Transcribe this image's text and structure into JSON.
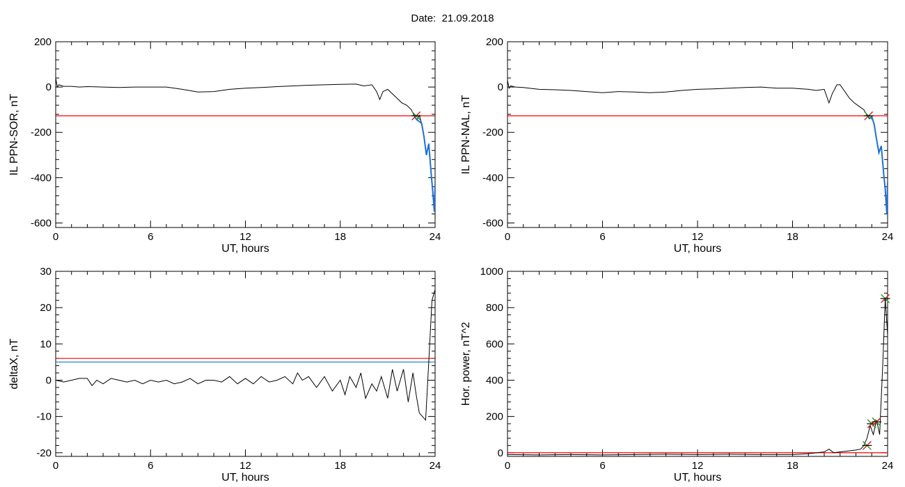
{
  "header": {
    "date_label": "Date:",
    "date_value": "21.09.2018"
  },
  "chart_data": [
    {
      "type": "line",
      "xlabel": "UT, hours",
      "ylabel": "IL PPN-SOR, nT",
      "xlim": [
        0,
        24
      ],
      "ylim": [
        -620,
        200
      ],
      "xticks": [
        0,
        6,
        12,
        18,
        24
      ],
      "yticks": [
        -600,
        -400,
        -200,
        0,
        200
      ],
      "threshold": -127,
      "threshold_color": "#ff0000",
      "series_color": "#000000",
      "highlight_color": "#1f6fd6",
      "series": [
        {
          "x": [
            0,
            0.1,
            0.2,
            0.5,
            1,
            1.5,
            2,
            3,
            4,
            5,
            6,
            7,
            8,
            9,
            10,
            11,
            12,
            13,
            14,
            15,
            16,
            17,
            18,
            19,
            19.5,
            20,
            20.3,
            20.5,
            20.7,
            21,
            21.3,
            21.6,
            21.9,
            22.2,
            22.5,
            22.7,
            22.85,
            23,
            23.15,
            23.3,
            23.45,
            23.6,
            23.75,
            23.85,
            23.95,
            24
          ],
          "y": [
            40,
            0,
            10,
            3,
            3,
            0,
            2,
            0,
            -2,
            0,
            0,
            0,
            -10,
            -22,
            -20,
            -10,
            -5,
            -2,
            2,
            5,
            8,
            10,
            12,
            13,
            5,
            10,
            -20,
            -55,
            -20,
            -10,
            -30,
            -50,
            -70,
            -80,
            -100,
            -130,
            -145,
            -125,
            -160,
            -220,
            -300,
            -250,
            -380,
            -460,
            -550,
            -430
          ]
        }
      ],
      "markers": [
        {
          "x": 22.8,
          "y": -127
        }
      ]
    },
    {
      "type": "line",
      "xlabel": "UT, hours",
      "ylabel": "IL PPN-NAL, nT",
      "xlim": [
        0,
        24
      ],
      "ylim": [
        -620,
        200
      ],
      "xticks": [
        0,
        6,
        12,
        18,
        24
      ],
      "yticks": [
        -600,
        -400,
        -200,
        0,
        200
      ],
      "threshold": -127,
      "threshold_color": "#ff0000",
      "series_color": "#000000",
      "highlight_color": "#1f6fd6",
      "series": [
        {
          "x": [
            0,
            0.1,
            0.2,
            0.5,
            1,
            2,
            3,
            4,
            5,
            6,
            7,
            8,
            9,
            10,
            11,
            12,
            13,
            14,
            15,
            16,
            17,
            18,
            19,
            19.5,
            20,
            20.3,
            20.5,
            20.8,
            21,
            21.3,
            21.6,
            21.9,
            22.2,
            22.5,
            22.7,
            22.85,
            23,
            23.15,
            23.3,
            23.45,
            23.6,
            23.75,
            23.85,
            23.95,
            24
          ],
          "y": [
            30,
            -5,
            5,
            0,
            -2,
            -10,
            -12,
            -15,
            -20,
            -25,
            -20,
            -22,
            -25,
            -22,
            -15,
            -10,
            -8,
            -5,
            -2,
            0,
            -5,
            -5,
            -10,
            -15,
            -10,
            -70,
            -30,
            10,
            10,
            -20,
            -50,
            -70,
            -85,
            -100,
            -125,
            -140,
            -130,
            -165,
            -230,
            -290,
            -260,
            -380,
            -450,
            -560,
            -420
          ]
        }
      ],
      "markers": [
        {
          "x": 22.8,
          "y": -127
        }
      ]
    },
    {
      "type": "line",
      "xlabel": "UT, hours",
      "ylabel": "deltaX, nT",
      "xlim": [
        0,
        24
      ],
      "ylim": [
        -21,
        30
      ],
      "xticks": [
        0,
        6,
        12,
        18,
        24
      ],
      "yticks": [
        -20,
        -10,
        0,
        10,
        20,
        30
      ],
      "thresholds": [
        {
          "value": 6,
          "color": "#ff0000"
        },
        {
          "value": 5,
          "color": "#1a8cc7"
        }
      ],
      "series_color": "#000000",
      "series": [
        {
          "x": [
            0,
            0.5,
            1,
            1.5,
            2,
            2.3,
            2.6,
            3,
            3.5,
            4,
            4.5,
            5,
            5.5,
            6,
            6.5,
            7,
            7.5,
            8,
            8.5,
            9,
            9.5,
            10,
            10.5,
            11,
            11.5,
            12,
            12.5,
            13,
            13.5,
            14,
            14.5,
            15,
            15.3,
            15.6,
            16,
            16.5,
            17,
            17.5,
            18,
            18.3,
            18.6,
            19,
            19.3,
            19.6,
            20,
            20.3,
            20.6,
            21,
            21.3,
            21.6,
            22,
            22.3,
            22.6,
            22.8,
            23,
            23.2,
            23.4,
            23.6,
            23.8,
            24
          ],
          "y": [
            0,
            -0.5,
            0,
            0.5,
            0.5,
            -1.5,
            0,
            -1,
            0.5,
            0,
            -0.5,
            0,
            -1,
            0,
            -0.5,
            0,
            -1,
            -0.5,
            0.5,
            -1,
            0,
            0,
            -0.5,
            1,
            -1,
            0.5,
            -1,
            1,
            -0.5,
            0,
            1,
            -1,
            2,
            0,
            1,
            -2,
            1,
            -3,
            0,
            -4,
            1,
            -2,
            2,
            -5,
            -1,
            -3,
            1,
            -5,
            3,
            -3,
            3,
            -6,
            2,
            -4,
            -9,
            -10,
            -11,
            5,
            22,
            25
          ]
        }
      ]
    },
    {
      "type": "line",
      "xlabel": "UT, hours",
      "ylabel": "Hor. power, nT^2",
      "xlim": [
        0,
        24
      ],
      "ylim": [
        -20,
        1000
      ],
      "xticks": [
        0,
        6,
        12,
        18,
        24
      ],
      "yticks": [
        0,
        200,
        400,
        600,
        800,
        1000
      ],
      "threshold": 0,
      "threshold_color": "#ff0000",
      "series_color": "#000000",
      "series": [
        {
          "x": [
            0,
            2,
            4,
            6,
            8,
            10,
            12,
            14,
            16,
            18,
            19,
            20,
            20.3,
            20.6,
            21,
            21.5,
            22,
            22.3,
            22.5,
            22.7,
            22.9,
            23.1,
            23.3,
            23.5,
            23.7,
            23.85,
            24
          ],
          "y": [
            -10,
            -12,
            -10,
            -12,
            -10,
            -8,
            -10,
            -8,
            -10,
            -10,
            -5,
            5,
            20,
            0,
            5,
            10,
            15,
            20,
            40,
            80,
            150,
            100,
            180,
            100,
            500,
            850,
            650
          ]
        }
      ],
      "markers": [
        {
          "x": 22.7,
          "y": 40
        },
        {
          "x": 23.0,
          "y": 160
        },
        {
          "x": 23.3,
          "y": 170
        },
        {
          "x": 23.85,
          "y": 850
        }
      ]
    }
  ]
}
